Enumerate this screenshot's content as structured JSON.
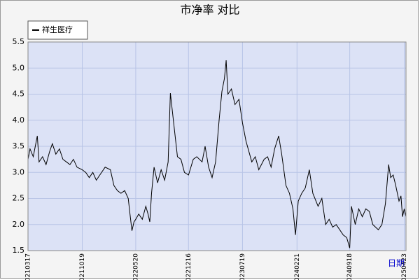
{
  "chart_data": {
    "type": "line",
    "title": "市净率 对比",
    "x_label": "日期",
    "x": [
      "20210317",
      "20210325",
      "20210407",
      "20210423",
      "20210430",
      "20210514",
      "20210528",
      "20210611",
      "20210622",
      "20210706",
      "20210720",
      "20210803",
      "20210817",
      "20210831",
      "20210914",
      "20210928",
      "20211019",
      "20211102",
      "20211116",
      "20211130",
      "20211214",
      "20211228",
      "20220118",
      "20220208",
      "20220222",
      "20220308",
      "20220322",
      "20220406",
      "20220420",
      "20220427",
      "20220505",
      "20220513",
      "20220520",
      "20220601",
      "20220615",
      "20220629",
      "20220708",
      "20220715",
      "20220722",
      "20220801",
      "20220815",
      "20220829",
      "20220912",
      "20220926",
      "20221005",
      "20221019",
      "20221102",
      "20221116",
      "20221130",
      "20221216",
      "20230104",
      "20230118",
      "20230208",
      "20230220",
      "20230306",
      "20230320",
      "20230403",
      "20230417",
      "20230428",
      "20230508",
      "20230515",
      "20230522",
      "20230605",
      "20230619",
      "20230705",
      "20230719",
      "20230802",
      "20230825",
      "20230908",
      "20230922",
      "20231013",
      "20231027",
      "20231110",
      "20231124",
      "20231210",
      "20231222",
      "20240108",
      "20240122",
      "20240205",
      "20240215",
      "20240226",
      "20240311",
      "20240325",
      "20240410",
      "20240424",
      "20240515",
      "20240530",
      "20240614",
      "20240628",
      "20240712",
      "20240726",
      "20240809",
      "20240823",
      "20240906",
      "20240918",
      "20240925",
      "20241010",
      "20241024",
      "20241107",
      "20241121",
      "20241205",
      "20241219",
      "20250110",
      "20250124",
      "20250207",
      "20250220",
      "20250228",
      "20250310",
      "20250320",
      "20250402",
      "20250410",
      "20250416",
      "20250423",
      "20250430"
    ],
    "series": [
      {
        "name": "祥生医疗",
        "color": "#000000",
        "values": [
          3.25,
          3.45,
          3.3,
          3.7,
          3.2,
          3.3,
          3.15,
          3.4,
          3.55,
          3.35,
          3.45,
          3.25,
          3.2,
          3.15,
          3.25,
          3.1,
          3.05,
          3.0,
          2.9,
          3.0,
          2.85,
          2.95,
          3.1,
          3.05,
          2.75,
          2.65,
          2.6,
          2.65,
          2.5,
          2.2,
          1.88,
          2.05,
          2.1,
          2.2,
          2.1,
          2.35,
          2.2,
          2.05,
          2.6,
          3.1,
          2.8,
          3.05,
          2.85,
          3.2,
          4.52,
          3.9,
          3.3,
          3.25,
          3.0,
          2.95,
          3.25,
          3.3,
          3.2,
          3.5,
          3.1,
          2.9,
          3.2,
          4.0,
          4.55,
          4.8,
          5.15,
          4.5,
          4.6,
          4.3,
          4.4,
          3.95,
          3.6,
          3.2,
          3.3,
          3.05,
          3.25,
          3.3,
          3.1,
          3.45,
          3.7,
          3.35,
          2.75,
          2.6,
          2.3,
          1.8,
          2.45,
          2.6,
          2.7,
          3.05,
          2.6,
          2.35,
          2.5,
          2.0,
          2.1,
          1.95,
          2.0,
          1.9,
          1.8,
          1.75,
          1.55,
          2.35,
          2.0,
          2.3,
          2.15,
          2.3,
          2.25,
          2.0,
          1.9,
          2.0,
          2.4,
          3.15,
          2.9,
          2.95,
          2.75,
          2.45,
          2.55,
          2.15,
          2.3,
          2.15
        ]
      }
    ],
    "xlim": [
      "20210317",
      "20250430"
    ],
    "xticks": [
      "20210317",
      "20211019",
      "20220520",
      "20221216",
      "20230719",
      "20240221",
      "20240918",
      "20250423"
    ],
    "ylim": [
      1.5,
      5.5
    ],
    "yticks": [
      1.5,
      {
        "value": 2.0,
        "label": "2.0"
      },
      2.5,
      {
        "value": 3.0,
        "label": "3.0"
      },
      3.5,
      {
        "value": 4.0,
        "label": "4.0"
      },
      4.5,
      {
        "value": 5.0,
        "label": "5.0"
      },
      5.5
    ],
    "grid": true,
    "legend": "top-left"
  }
}
